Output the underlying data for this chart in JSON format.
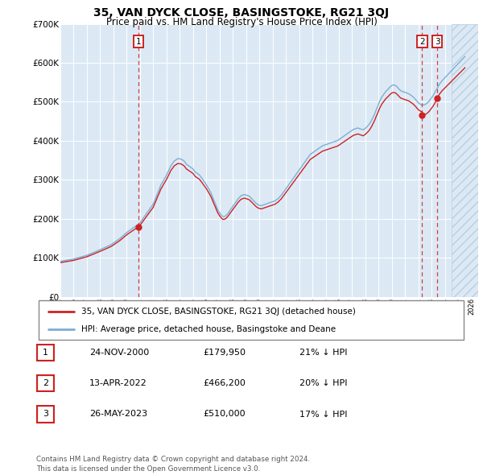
{
  "title": "35, VAN DYCK CLOSE, BASINGSTOKE, RG21 3QJ",
  "subtitle": "Price paid vs. HM Land Registry's House Price Index (HPI)",
  "ylim": [
    0,
    700000
  ],
  "xlim_start": 1995.0,
  "xlim_end": 2026.5,
  "yticks": [
    0,
    100000,
    200000,
    300000,
    400000,
    500000,
    600000,
    700000
  ],
  "ytick_labels": [
    "£0",
    "£100K",
    "£200K",
    "£300K",
    "£400K",
    "£500K",
    "£600K",
    "£700K"
  ],
  "xtick_years": [
    1995,
    1996,
    1997,
    1998,
    1999,
    2000,
    2001,
    2002,
    2003,
    2004,
    2005,
    2006,
    2007,
    2008,
    2009,
    2010,
    2011,
    2012,
    2013,
    2014,
    2015,
    2016,
    2017,
    2018,
    2019,
    2020,
    2021,
    2022,
    2023,
    2024,
    2025,
    2026
  ],
  "hpi_color": "#7bafd4",
  "price_color": "#cc2222",
  "sale_line_color": "#cc2222",
  "plot_bg": "#dce9f5",
  "hpi_x": [
    1995.0,
    1995.08,
    1995.17,
    1995.25,
    1995.33,
    1995.42,
    1995.5,
    1995.58,
    1995.67,
    1995.75,
    1995.83,
    1995.92,
    1996.0,
    1996.08,
    1996.17,
    1996.25,
    1996.33,
    1996.42,
    1996.5,
    1996.58,
    1996.67,
    1996.75,
    1996.83,
    1996.92,
    1997.0,
    1997.08,
    1997.17,
    1997.25,
    1997.33,
    1997.42,
    1997.5,
    1997.58,
    1997.67,
    1997.75,
    1997.83,
    1997.92,
    1998.0,
    1998.08,
    1998.17,
    1998.25,
    1998.33,
    1998.42,
    1998.5,
    1998.58,
    1998.67,
    1998.75,
    1998.83,
    1998.92,
    1999.0,
    1999.08,
    1999.17,
    1999.25,
    1999.33,
    1999.42,
    1999.5,
    1999.58,
    1999.67,
    1999.75,
    1999.83,
    1999.92,
    2000.0,
    2000.08,
    2000.17,
    2000.25,
    2000.33,
    2000.42,
    2000.5,
    2000.58,
    2000.67,
    2000.75,
    2000.83,
    2000.92,
    2001.0,
    2001.08,
    2001.17,
    2001.25,
    2001.33,
    2001.42,
    2001.5,
    2001.58,
    2001.67,
    2001.75,
    2001.83,
    2001.92,
    2002.0,
    2002.08,
    2002.17,
    2002.25,
    2002.33,
    2002.42,
    2002.5,
    2002.58,
    2002.67,
    2002.75,
    2002.83,
    2002.92,
    2003.0,
    2003.08,
    2003.17,
    2003.25,
    2003.33,
    2003.42,
    2003.5,
    2003.58,
    2003.67,
    2003.75,
    2003.83,
    2003.92,
    2004.0,
    2004.08,
    2004.17,
    2004.25,
    2004.33,
    2004.42,
    2004.5,
    2004.58,
    2004.67,
    2004.75,
    2004.83,
    2004.92,
    2005.0,
    2005.08,
    2005.17,
    2005.25,
    2005.33,
    2005.42,
    2005.5,
    2005.58,
    2005.67,
    2005.75,
    2005.83,
    2005.92,
    2006.0,
    2006.08,
    2006.17,
    2006.25,
    2006.33,
    2006.42,
    2006.5,
    2006.58,
    2006.67,
    2006.75,
    2006.83,
    2006.92,
    2007.0,
    2007.08,
    2007.17,
    2007.25,
    2007.33,
    2007.42,
    2007.5,
    2007.58,
    2007.67,
    2007.75,
    2007.83,
    2007.92,
    2008.0,
    2008.08,
    2008.17,
    2008.25,
    2008.33,
    2008.42,
    2008.5,
    2008.58,
    2008.67,
    2008.75,
    2008.83,
    2008.92,
    2009.0,
    2009.08,
    2009.17,
    2009.25,
    2009.33,
    2009.42,
    2009.5,
    2009.58,
    2009.67,
    2009.75,
    2009.83,
    2009.92,
    2010.0,
    2010.08,
    2010.17,
    2010.25,
    2010.33,
    2010.42,
    2010.5,
    2010.58,
    2010.67,
    2010.75,
    2010.83,
    2010.92,
    2011.0,
    2011.08,
    2011.17,
    2011.25,
    2011.33,
    2011.42,
    2011.5,
    2011.58,
    2011.67,
    2011.75,
    2011.83,
    2011.92,
    2012.0,
    2012.08,
    2012.17,
    2012.25,
    2012.33,
    2012.42,
    2012.5,
    2012.58,
    2012.67,
    2012.75,
    2012.83,
    2012.92,
    2013.0,
    2013.08,
    2013.17,
    2013.25,
    2013.33,
    2013.42,
    2013.5,
    2013.58,
    2013.67,
    2013.75,
    2013.83,
    2013.92,
    2014.0,
    2014.08,
    2014.17,
    2014.25,
    2014.33,
    2014.42,
    2014.5,
    2014.58,
    2014.67,
    2014.75,
    2014.83,
    2014.92,
    2015.0,
    2015.08,
    2015.17,
    2015.25,
    2015.33,
    2015.42,
    2015.5,
    2015.58,
    2015.67,
    2015.75,
    2015.83,
    2015.92,
    2016.0,
    2016.08,
    2016.17,
    2016.25,
    2016.33,
    2016.42,
    2016.5,
    2016.58,
    2016.67,
    2016.75,
    2016.83,
    2016.92,
    2017.0,
    2017.08,
    2017.17,
    2017.25,
    2017.33,
    2017.42,
    2017.5,
    2017.58,
    2017.67,
    2017.75,
    2017.83,
    2017.92,
    2018.0,
    2018.08,
    2018.17,
    2018.25,
    2018.33,
    2018.42,
    2018.5,
    2018.58,
    2018.67,
    2018.75,
    2018.83,
    2018.92,
    2019.0,
    2019.08,
    2019.17,
    2019.25,
    2019.33,
    2019.42,
    2019.5,
    2019.58,
    2019.67,
    2019.75,
    2019.83,
    2019.92,
    2020.0,
    2020.08,
    2020.17,
    2020.25,
    2020.33,
    2020.42,
    2020.5,
    2020.58,
    2020.67,
    2020.75,
    2020.83,
    2020.92,
    2021.0,
    2021.08,
    2021.17,
    2021.25,
    2021.33,
    2021.42,
    2021.5,
    2021.58,
    2021.67,
    2021.75,
    2021.83,
    2021.92,
    2022.0,
    2022.08,
    2022.17,
    2022.25,
    2022.33,
    2022.42,
    2022.5,
    2022.58,
    2022.67,
    2022.75,
    2022.83,
    2022.92,
    2023.0,
    2023.08,
    2023.17,
    2023.25,
    2023.33,
    2023.42,
    2023.5,
    2023.58,
    2023.67,
    2023.75,
    2023.83,
    2023.92,
    2024.0,
    2024.08,
    2024.17,
    2024.25,
    2024.33,
    2024.42,
    2024.5,
    2024.58,
    2024.67,
    2024.75,
    2024.83,
    2024.92,
    2025.0,
    2025.08,
    2025.17,
    2025.25,
    2025.33,
    2025.42,
    2025.5
  ],
  "hpi_y": [
    91000,
    91500,
    92000,
    92500,
    93000,
    93500,
    94000,
    94500,
    95000,
    95500,
    96000,
    96500,
    97000,
    97800,
    98600,
    99400,
    100200,
    101000,
    101800,
    102600,
    103400,
    104200,
    105000,
    105800,
    106600,
    107800,
    109000,
    110200,
    111400,
    112600,
    113800,
    115000,
    116200,
    117400,
    118600,
    119800,
    121000,
    122300,
    123600,
    124900,
    126200,
    127500,
    128800,
    130100,
    131400,
    132700,
    134000,
    136000,
    138000,
    140000,
    142000,
    144000,
    146000,
    148000,
    150000,
    152500,
    155000,
    157500,
    160000,
    162500,
    165000,
    167000,
    169000,
    171000,
    173000,
    175000,
    177000,
    179000,
    181000,
    183000,
    185000,
    187000,
    190000,
    194000,
    198000,
    202000,
    206000,
    210000,
    214000,
    218000,
    222000,
    226000,
    230000,
    234000,
    238000,
    245000,
    252000,
    259000,
    266000,
    273000,
    280000,
    287000,
    292000,
    297000,
    302000,
    307000,
    312000,
    318000,
    324000,
    330000,
    336000,
    340000,
    344000,
    348000,
    350000,
    352000,
    354000,
    354000,
    354000,
    353000,
    352000,
    350000,
    348000,
    344000,
    340000,
    338000,
    336000,
    334000,
    332000,
    330000,
    328000,
    324000,
    320000,
    318000,
    316000,
    314000,
    312000,
    308000,
    304000,
    300000,
    296000,
    292000,
    288000,
    283000,
    278000,
    273000,
    268000,
    261000,
    254000,
    247000,
    240000,
    233000,
    226000,
    220000,
    216000,
    212000,
    208000,
    206000,
    206000,
    207000,
    209000,
    212000,
    216000,
    220000,
    224000,
    228000,
    232000,
    236000,
    240000,
    244000,
    248000,
    252000,
    255000,
    258000,
    260000,
    261000,
    262000,
    262000,
    261000,
    260000,
    259000,
    258000,
    255000,
    252000,
    249000,
    246000,
    243000,
    240000,
    238000,
    236000,
    235000,
    234000,
    234000,
    235000,
    236000,
    237000,
    238000,
    239000,
    240000,
    241000,
    242000,
    243000,
    244000,
    245000,
    246000,
    248000,
    250000,
    252000,
    255000,
    258000,
    261000,
    265000,
    269000,
    273000,
    277000,
    281000,
    285000,
    289000,
    293000,
    297000,
    301000,
    305000,
    309000,
    313000,
    317000,
    321000,
    325000,
    329000,
    333000,
    337000,
    341000,
    345000,
    349000,
    353000,
    357000,
    361000,
    365000,
    367000,
    369000,
    371000,
    373000,
    375000,
    377000,
    379000,
    381000,
    383000,
    385000,
    387000,
    388000,
    389000,
    390000,
    391000,
    392000,
    393000,
    394000,
    395000,
    396000,
    397000,
    398000,
    399000,
    400000,
    401000,
    403000,
    405000,
    407000,
    409000,
    411000,
    413000,
    415000,
    417000,
    419000,
    421000,
    423000,
    425000,
    427000,
    429000,
    430000,
    431000,
    432000,
    433000,
    432000,
    431000,
    430000,
    429000,
    428000,
    430000,
    432000,
    435000,
    438000,
    441000,
    445000,
    450000,
    455000,
    461000,
    467000,
    474000,
    481000,
    488000,
    495000,
    502000,
    508000,
    513000,
    517000,
    521000,
    525000,
    528000,
    531000,
    534000,
    537000,
    540000,
    542000,
    543000,
    543000,
    542000,
    540000,
    537000,
    534000,
    531000,
    528000,
    527000,
    526000,
    525000,
    524000,
    523000,
    522000,
    521000,
    519000,
    517000,
    515000,
    513000,
    510000,
    507000,
    504000,
    500000,
    497000,
    495000,
    493000,
    492000,
    492000,
    492000,
    493000,
    495000,
    497000,
    500000,
    503000,
    507000,
    511000,
    515000,
    520000,
    525000,
    530000,
    535000,
    540000,
    545000,
    549000,
    553000,
    556000,
    559000,
    562000,
    565000,
    568000,
    571000,
    574000,
    577000,
    580000,
    583000,
    586000,
    589000,
    592000,
    595000,
    598000,
    601000,
    604000,
    607000,
    610000,
    613000,
    616000
  ],
  "sale_dates": [
    2000.9,
    2022.28,
    2023.42
  ],
  "sale_prices": [
    179950,
    466200,
    510000
  ],
  "sale_labels": [
    "1",
    "2",
    "3"
  ],
  "legend_red_label": "35, VAN DYCK CLOSE, BASINGSTOKE, RG21 3QJ (detached house)",
  "legend_blue_label": "HPI: Average price, detached house, Basingstoke and Deane",
  "table_rows": [
    {
      "num": "1",
      "date": "24-NOV-2000",
      "price": "£179,950",
      "note": "21% ↓ HPI"
    },
    {
      "num": "2",
      "date": "13-APR-2022",
      "price": "£466,200",
      "note": "20% ↓ HPI"
    },
    {
      "num": "3",
      "date": "26-MAY-2023",
      "price": "£510,000",
      "note": "17% ↓ HPI"
    }
  ],
  "footer": "Contains HM Land Registry data © Crown copyright and database right 2024.\nThis data is licensed under the Open Government Licence v3.0.",
  "hatch_start": 2024.5
}
